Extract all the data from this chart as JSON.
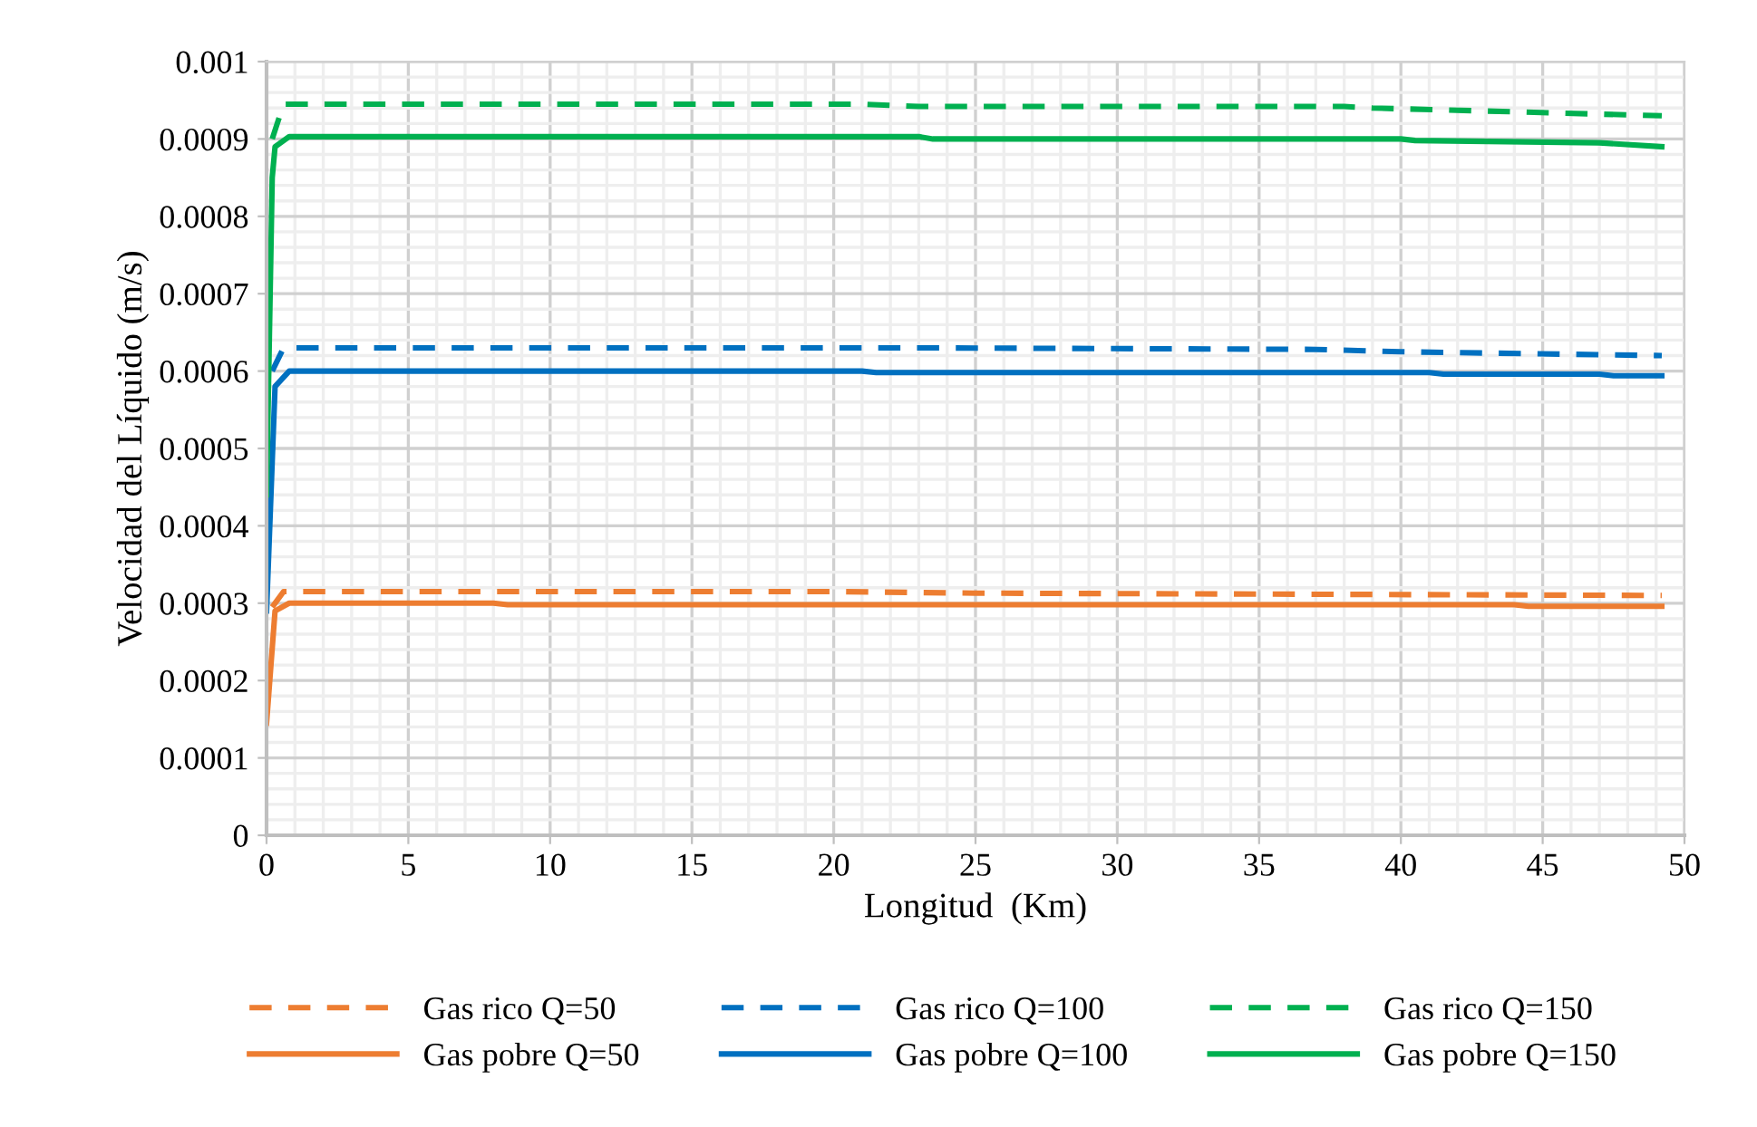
{
  "chart_data": {
    "type": "line",
    "xlabel": "Longitud  (Km)",
    "ylabel": "Velocidad del Líquido (m/s)",
    "xlim": [
      0,
      50
    ],
    "xticks": [
      0,
      5,
      10,
      15,
      20,
      25,
      30,
      35,
      40,
      45,
      50
    ],
    "ylim": [
      0,
      0.001
    ],
    "yticks": [
      0,
      0.0001,
      0.0002,
      0.0003,
      0.0004,
      0.0005,
      0.0006,
      0.0007,
      0.0008,
      0.0009,
      0.001
    ],
    "grid": true,
    "legend": "bottom",
    "marker": "none",
    "series": [
      {
        "name": "Gas rico Q=50",
        "color": "#ed7d31",
        "line_style": "dashed",
        "x": [
          0.2,
          0.6,
          20,
          25,
          49.2
        ],
        "values": [
          0.000295,
          0.000315,
          0.000315,
          0.000313,
          0.00031
        ]
      },
      {
        "name": "Gas rico Q=100",
        "color": "#0070c0",
        "line_style": "dashed",
        "x": [
          0.2,
          0.6,
          23,
          37,
          40,
          49.2
        ],
        "values": [
          0.0006,
          0.00063,
          0.00063,
          0.000628,
          0.000625,
          0.00062
        ]
      },
      {
        "name": "Gas rico Q=150",
        "color": "#00b050",
        "line_style": "dashed",
        "x": [
          0.2,
          0.6,
          21,
          23,
          38,
          39,
          49.2
        ],
        "values": [
          0.0009,
          0.000945,
          0.000945,
          0.000942,
          0.000942,
          0.00094,
          0.00093
        ]
      },
      {
        "name": "Gas pobre Q=50",
        "color": "#ed7d31",
        "line_style": "solid",
        "x": [
          0,
          0.3,
          0.8,
          8,
          8.5,
          44,
          44.5,
          49.2
        ],
        "values": [
          0.000145,
          0.00029,
          0.0003,
          0.0003,
          0.000298,
          0.000298,
          0.000296,
          0.000296
        ]
      },
      {
        "name": "Gas pobre Q=100",
        "color": "#0070c0",
        "line_style": "solid",
        "x": [
          0,
          0.3,
          0.8,
          21,
          21.5,
          41,
          41.5,
          47,
          47.5,
          49.2
        ],
        "values": [
          0.00029,
          0.00058,
          0.0006,
          0.0006,
          0.000598,
          0.000598,
          0.000596,
          0.000596,
          0.000594,
          0.000594
        ]
      },
      {
        "name": "Gas pobre Q=150",
        "color": "#00b050",
        "line_style": "solid",
        "x": [
          0,
          0.2,
          0.3,
          0.8,
          23,
          23.5,
          40,
          40.5,
          47,
          49.2
        ],
        "values": [
          0.00044,
          0.00085,
          0.00089,
          0.000903,
          0.000903,
          0.0009,
          0.0009,
          0.000898,
          0.000895,
          0.00089
        ]
      }
    ]
  }
}
